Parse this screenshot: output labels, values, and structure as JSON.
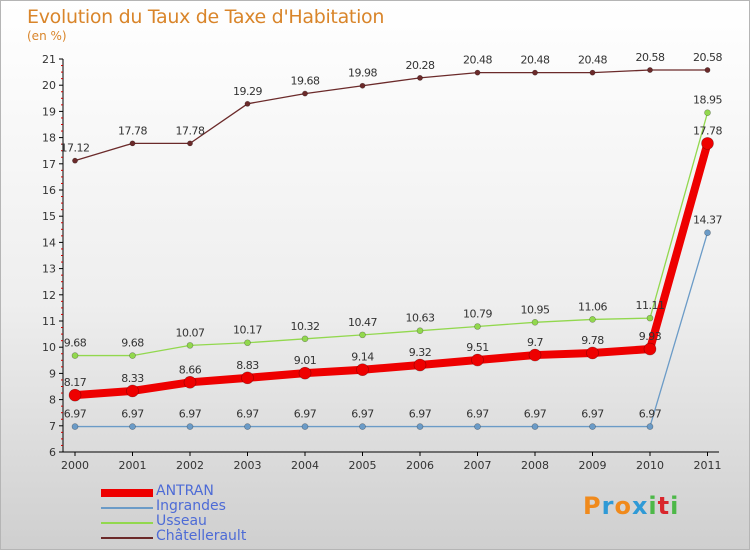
{
  "title": "Evolution du Taux de Taxe d'Habitation",
  "subtitle": "(en %)",
  "logo": {
    "letters": [
      "P",
      "r",
      "o",
      "x",
      "i",
      "t",
      "i"
    ],
    "colors": [
      "#f08a1c",
      "#2f9ad6",
      "#f08a1c",
      "#2f9ad6",
      "#4db848",
      "#d9262c",
      "#4db848"
    ]
  },
  "chart_data": {
    "type": "line",
    "x": [
      "2000",
      "2001",
      "2002",
      "2003",
      "2004",
      "2005",
      "2006",
      "2007",
      "2008",
      "2009",
      "2010",
      "2011"
    ],
    "ylim": [
      6,
      21
    ],
    "yticks": [
      "6",
      "7",
      "8",
      "9",
      "10",
      "11",
      "12",
      "13",
      "14",
      "15",
      "16",
      "17",
      "18",
      "19",
      "20",
      "21"
    ],
    "grid": false,
    "legend_position": "bottom-left",
    "series": [
      {
        "name": "Châtellerault",
        "color": "#6b2a2a",
        "values": [
          17.12,
          17.78,
          17.78,
          19.29,
          19.68,
          19.98,
          20.28,
          20.48,
          20.48,
          20.48,
          20.58,
          20.58
        ],
        "labels": [
          "17.12",
          "17.78",
          "17.78",
          "19.29",
          "19.68",
          "19.98",
          "20.28",
          "20.48",
          "20.48",
          "20.48",
          "20.58",
          "20.58"
        ],
        "width": 1.3,
        "dot": 2.6
      },
      {
        "name": "Usseau",
        "color": "#92d84e",
        "values": [
          9.68,
          9.68,
          10.07,
          10.17,
          10.32,
          10.47,
          10.63,
          10.79,
          10.95,
          11.06,
          11.11,
          18.95
        ],
        "labels": [
          "9.68",
          "9.68",
          "10.07",
          "10.17",
          "10.32",
          "10.47",
          "10.63",
          "10.79",
          "10.95",
          "11.06",
          "11.11",
          "18.95"
        ],
        "width": 1.3,
        "dot": 3
      },
      {
        "name": "Ingrandes",
        "color": "#6b9bc7",
        "values": [
          6.97,
          6.97,
          6.97,
          6.97,
          6.97,
          6.97,
          6.97,
          6.97,
          6.97,
          6.97,
          6.97,
          14.37
        ],
        "labels": [
          "6.97",
          "6.97",
          "6.97",
          "6.97",
          "6.97",
          "6.97",
          "6.97",
          "6.97",
          "6.97",
          "6.97",
          "6.97",
          "14.37"
        ],
        "width": 1.3,
        "dot": 3
      },
      {
        "name": "ANTRAN",
        "color": "#ee0000",
        "values": [
          8.17,
          8.33,
          8.66,
          8.83,
          9.01,
          9.14,
          9.32,
          9.51,
          9.7,
          9.78,
          9.93,
          17.78
        ],
        "labels": [
          "8.17",
          "8.33",
          "8.66",
          "8.83",
          "9.01",
          "9.14",
          "9.32",
          "9.51",
          "9.7",
          "9.78",
          "9.93",
          "17.78"
        ],
        "width": 8,
        "dot": 6
      }
    ],
    "legend": [
      "ANTRAN",
      "Ingrandes",
      "Usseau",
      "Châtellerault"
    ]
  }
}
